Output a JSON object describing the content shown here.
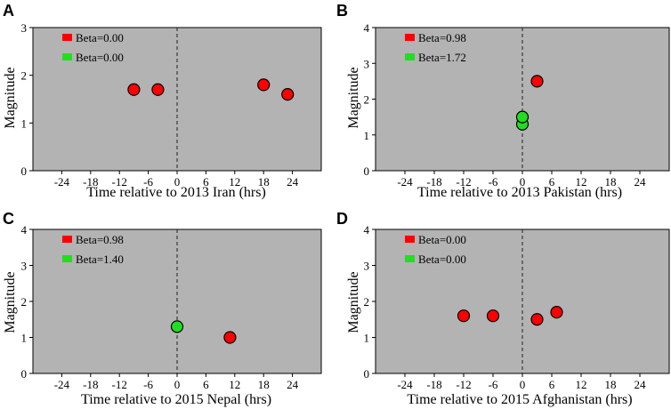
{
  "figure": {
    "colors": {
      "panel_bg": "#b3b3b3",
      "red": "#ff0000",
      "green": "#22dd22",
      "marker_edge": "#000000"
    }
  },
  "chart_data": [
    {
      "letter": "A",
      "type": "scatter",
      "xlabel": "Time relative to 2013 Iran (hrs)",
      "ylabel": "Magnitude",
      "xlim": [
        -30,
        30
      ],
      "ylim": [
        0,
        3
      ],
      "xticks": [
        -24,
        -18,
        -12,
        -6,
        0,
        6,
        12,
        18,
        24
      ],
      "yticks": [
        0,
        1,
        2,
        3
      ],
      "legend": [
        {
          "label": "Beta=0.00",
          "color": "#ff0000"
        },
        {
          "label": "Beta=0.00",
          "color": "#22dd22"
        }
      ],
      "series": [
        {
          "name": "red",
          "color": "#ff0000",
          "points": [
            [
              -9,
              1.7
            ],
            [
              -4,
              1.7
            ],
            [
              18,
              1.8
            ],
            [
              23,
              1.6
            ]
          ]
        },
        {
          "name": "green",
          "color": "#22dd22",
          "points": []
        }
      ]
    },
    {
      "letter": "B",
      "type": "scatter",
      "xlabel": "Time relative to 2013 Pakistan (hrs)",
      "ylabel": "Magnitude",
      "xlim": [
        -30,
        30
      ],
      "ylim": [
        0,
        4
      ],
      "xticks": [
        -24,
        -18,
        -12,
        -6,
        0,
        6,
        12,
        18,
        24
      ],
      "yticks": [
        0,
        1,
        2,
        3,
        4
      ],
      "legend": [
        {
          "label": "Beta=0.98",
          "color": "#ff0000"
        },
        {
          "label": "Beta=1.72",
          "color": "#22dd22"
        }
      ],
      "series": [
        {
          "name": "red",
          "color": "#ff0000",
          "points": [
            [
              3,
              2.5
            ]
          ]
        },
        {
          "name": "green",
          "color": "#22dd22",
          "points": [
            [
              0,
              1.3
            ],
            [
              0,
              1.5
            ]
          ]
        }
      ]
    },
    {
      "letter": "C",
      "type": "scatter",
      "xlabel": "Time relative to 2015 Nepal (hrs)",
      "ylabel": "Magnitude",
      "xlim": [
        -30,
        30
      ],
      "ylim": [
        0,
        4
      ],
      "xticks": [
        -24,
        -18,
        -12,
        -6,
        0,
        6,
        12,
        18,
        24
      ],
      "yticks": [
        0,
        1,
        2,
        3,
        4
      ],
      "legend": [
        {
          "label": "Beta=0.98",
          "color": "#ff0000"
        },
        {
          "label": "Beta=1.40",
          "color": "#22dd22"
        }
      ],
      "series": [
        {
          "name": "red",
          "color": "#ff0000",
          "points": [
            [
              11,
              1.0
            ]
          ]
        },
        {
          "name": "green",
          "color": "#22dd22",
          "points": [
            [
              0,
              1.3
            ]
          ]
        }
      ]
    },
    {
      "letter": "D",
      "type": "scatter",
      "xlabel": "Time relative to 2015 Afghanistan (hrs)",
      "ylabel": "Magnitude",
      "xlim": [
        -30,
        30
      ],
      "ylim": [
        0,
        4
      ],
      "xticks": [
        -24,
        -18,
        -12,
        -6,
        0,
        6,
        12,
        18,
        24
      ],
      "yticks": [
        0,
        1,
        2,
        3,
        4
      ],
      "legend": [
        {
          "label": "Beta=0.00",
          "color": "#ff0000"
        },
        {
          "label": "Beta=0.00",
          "color": "#22dd22"
        }
      ],
      "series": [
        {
          "name": "red",
          "color": "#ff0000",
          "points": [
            [
              -12,
              1.6
            ],
            [
              -6,
              1.6
            ],
            [
              3,
              1.5
            ],
            [
              7,
              1.7
            ]
          ]
        },
        {
          "name": "green",
          "color": "#22dd22",
          "points": []
        }
      ]
    }
  ]
}
